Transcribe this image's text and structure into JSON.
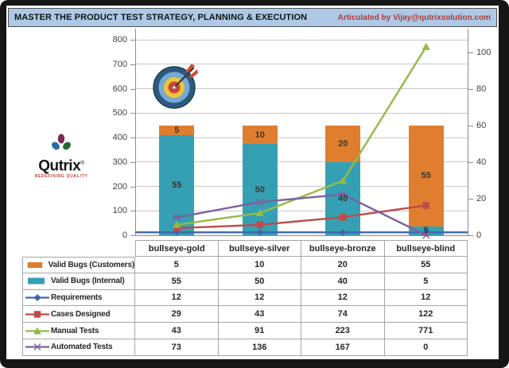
{
  "title_bar": {
    "title": "MASTER THE PRODUCT TEST STRATEGY, PLANNING & EXECUTION",
    "credit": "Articulated by  Vijay@qutrixsolution.com"
  },
  "logo": {
    "name": "Qutrix",
    "registered": "®",
    "tagline": "REDEFINING QUALITY"
  },
  "colors": {
    "title_bar_bg": "#ADC9E6",
    "credit_red": "#B03B38",
    "frame": "#161616",
    "grid": "#C9C9C9",
    "axis": "#8C8C8C",
    "table_border": "#A6A6A6",
    "text_dark": "#262626"
  },
  "chart_data": {
    "type": "combo: stacked bars (secondary axis) + lines (primary axis)",
    "title": "",
    "categories": [
      "bullseye-gold",
      "bullseye-silver",
      "bullseye-bronze",
      "bullseye-blind"
    ],
    "bar_series": [
      {
        "name": "Valid Bugs (Customers)",
        "values": [
          5,
          10,
          20,
          55
        ],
        "color": "#E07E30",
        "axis": "secondary",
        "stack": "top"
      },
      {
        "name": "Valid Bugs (Internal)",
        "values": [
          55,
          50,
          40,
          5
        ],
        "color": "#35A0B4",
        "axis": "secondary",
        "stack": "bottom"
      }
    ],
    "line_series": [
      {
        "name": "Requirements",
        "values": [
          12,
          12,
          12,
          12
        ],
        "color": "#3E66AE",
        "marker": "diamond",
        "axis": "primary",
        "extends_full_width": true
      },
      {
        "name": "Cases Designed",
        "values": [
          29,
          43,
          74,
          122
        ],
        "color": "#BE4B48",
        "marker": "square",
        "axis": "primary",
        "extends_full_width": false
      },
      {
        "name": "Manual Tests",
        "values": [
          43,
          91,
          223,
          771
        ],
        "color": "#94BA47",
        "marker": "triangle",
        "axis": "primary",
        "extends_full_width": false
      },
      {
        "name": "Automated Tests",
        "values": [
          73,
          136,
          167,
          0
        ],
        "color": "#7D60A0",
        "marker": "asterisk",
        "axis": "primary",
        "extends_full_width": false
      }
    ],
    "primary_axis": {
      "side": "left",
      "min": 0,
      "max": 800,
      "step": 100
    },
    "secondary_axis": {
      "side": "right",
      "min": 0,
      "max": 100,
      "step": 20
    },
    "gridlines": "horizontal, every 100 of primary axis",
    "bar_value_labels": true,
    "legend_position": "left column of data table below chart"
  }
}
